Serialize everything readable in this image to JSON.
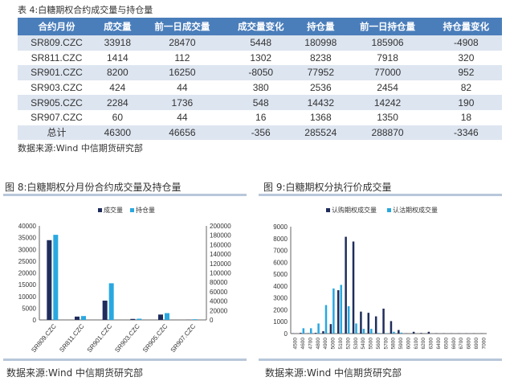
{
  "table": {
    "title": "表 4:白糖期权合约成交量与持仓量",
    "headers": [
      "合约月份",
      "成交量",
      "前一日成交量",
      "成交量变化",
      "持仓量",
      "前一日持仓量",
      "持仓量变化"
    ],
    "rows": [
      [
        "SR809.CZC",
        "33918",
        "28470",
        "5448",
        "180998",
        "185906",
        "-4908"
      ],
      [
        "SR811.CZC",
        "1414",
        "112",
        "1302",
        "8238",
        "7918",
        "320"
      ],
      [
        "SR901.CZC",
        "8200",
        "16250",
        "-8050",
        "77952",
        "77000",
        "952"
      ],
      [
        "SR903.CZC",
        "424",
        "44",
        "380",
        "2536",
        "2454",
        "82"
      ],
      [
        "SR905.CZC",
        "2284",
        "1736",
        "548",
        "14432",
        "14242",
        "190"
      ],
      [
        "SR907.CZC",
        "60",
        "44",
        "16",
        "1368",
        "1350",
        "18"
      ],
      [
        "总计",
        "46300",
        "46656",
        "-356",
        "285524",
        "288870",
        "-3346"
      ]
    ],
    "source": "数据来源:Wind 中信期货研究部"
  },
  "chart_data": [
    {
      "type": "bar",
      "title": "图 8:白糖期权分月份合约成交量及持仓量",
      "categories": [
        "SR809.CZC",
        "SR811.CZC",
        "SR901.CZC",
        "SR903.CZC",
        "SR905.CZC",
        "SR907.CZC"
      ],
      "series": [
        {
          "name": "成交量",
          "axis": "left",
          "color": "#1f2d5c",
          "values": [
            33918,
            1414,
            8200,
            424,
            2284,
            60
          ]
        },
        {
          "name": "持仓量",
          "axis": "right",
          "color": "#29a8e0",
          "values": [
            180998,
            8238,
            77952,
            2536,
            14432,
            1368
          ]
        }
      ],
      "ylim_left": [
        0,
        40000
      ],
      "yticks_left": [
        0,
        5000,
        10000,
        15000,
        20000,
        25000,
        30000,
        35000,
        40000
      ],
      "ylim_right": [
        0,
        200000
      ],
      "yticks_right": [
        0,
        20000,
        40000,
        60000,
        80000,
        100000,
        120000,
        140000,
        160000,
        180000,
        200000
      ],
      "legend": "top",
      "source": "数据来源:Wind 中信期货研究部"
    },
    {
      "type": "bar",
      "title": "图 9:白糖期权分执行价成交量",
      "categories": [
        "4500",
        "4600",
        "4700",
        "4800",
        "4900",
        "5000",
        "5100",
        "5200",
        "5300",
        "5400",
        "5500",
        "5600",
        "5700",
        "5800",
        "5900",
        "6000",
        "6100",
        "6200",
        "6300",
        "6400",
        "6500",
        "6600",
        "6700",
        "6800",
        "6900",
        "7000"
      ],
      "series": [
        {
          "name": "认购期权成交量",
          "color": "#1f2d5c",
          "values": [
            20,
            60,
            30,
            60,
            200,
            800,
            3650,
            8150,
            7750,
            1850,
            1750,
            1450,
            2100,
            1050,
            300,
            20,
            150,
            50,
            150,
            30,
            20,
            20,
            20,
            20,
            20,
            20
          ]
        },
        {
          "name": "认沽期权成交量",
          "color": "#29a8e0",
          "values": [
            0,
            450,
            450,
            850,
            2400,
            3800,
            4100,
            2300,
            850,
            400,
            400,
            50,
            30,
            150,
            80,
            0,
            0,
            0,
            0,
            0,
            0,
            0,
            0,
            0,
            0,
            0
          ]
        }
      ],
      "ylim": [
        0,
        9000
      ],
      "yticks": [
        0,
        1000,
        2000,
        3000,
        4000,
        5000,
        6000,
        7000,
        8000,
        9000
      ],
      "legend": "top",
      "source": "数据来源:Wind 中信期货研究部"
    }
  ]
}
